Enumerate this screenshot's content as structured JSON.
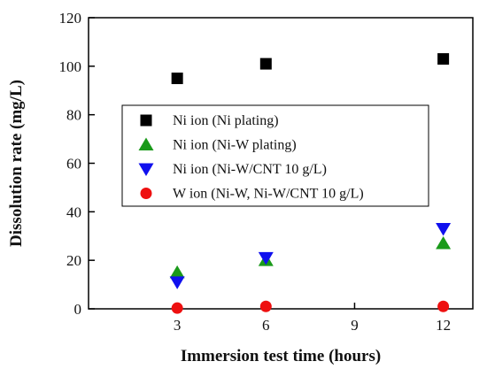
{
  "chart_data": {
    "type": "scatter",
    "title": "",
    "xlabel": "Immersion test time (hours)",
    "ylabel": "Dissolution rate (mg/L)",
    "xlim": [
      0,
      13
    ],
    "ylim": [
      0,
      120
    ],
    "xticks": [
      3,
      6,
      9,
      12
    ],
    "yticks": [
      0,
      20,
      40,
      60,
      80,
      100,
      120
    ],
    "grid": false,
    "legend_position": "center",
    "series": [
      {
        "name": "Ni ion (Ni plating)",
        "marker": "square",
        "color": "#000000",
        "x": [
          3,
          6,
          12
        ],
        "y": [
          95,
          101,
          103
        ]
      },
      {
        "name": "Ni ion (Ni-W plating)",
        "marker": "triangle-up",
        "color": "#1a9a1a",
        "x": [
          3,
          6,
          12
        ],
        "y": [
          15,
          20,
          27
        ]
      },
      {
        "name": "Ni ion (Ni-W/CNT 10 g/L)",
        "marker": "triangle-down",
        "color": "#1010ee",
        "x": [
          3,
          6,
          12
        ],
        "y": [
          11,
          21,
          33
        ]
      },
      {
        "name": "W ion (Ni-W, Ni-W/CNT 10 g/L)",
        "marker": "circle",
        "color": "#ee1010",
        "x": [
          3,
          6,
          12
        ],
        "y": [
          0.3,
          1,
          1
        ]
      }
    ]
  }
}
